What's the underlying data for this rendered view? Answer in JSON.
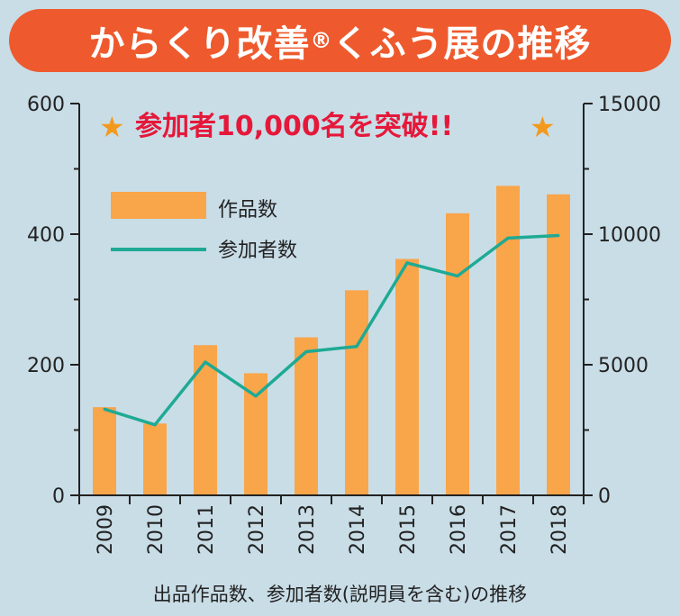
{
  "title": {
    "main": "からくり改善",
    "mark": "®",
    "rest": " くふう展の推移"
  },
  "headline": {
    "star_left": "★",
    "text": "参加者10,000名を突破!!",
    "star_right": "★"
  },
  "caption": "出品作品数、参加者数(説明員を含む)の推移",
  "colors": {
    "bar": "#f9a54a",
    "line": "#1eaa94",
    "banner": "#ee5a2d",
    "headline": "#e5183a",
    "star": "#f39a1e",
    "background": "#c9dde7"
  },
  "chart_data": {
    "type": "bar",
    "categories": [
      "2009",
      "2010",
      "2011",
      "2012",
      "2013",
      "2014",
      "2015",
      "2016",
      "2017",
      "2018"
    ],
    "series": [
      {
        "name": "作品数",
        "type": "bar",
        "axis": "left",
        "values": [
          135,
          110,
          230,
          187,
          242,
          314,
          362,
          432,
          474,
          461
        ]
      },
      {
        "name": "参加者数",
        "type": "line",
        "axis": "right",
        "values": [
          3300,
          2700,
          5100,
          3800,
          5500,
          5700,
          8900,
          8400,
          9850,
          9950
        ]
      }
    ],
    "y_left": {
      "min": 0,
      "max": 600,
      "ticks": [
        0,
        200,
        400,
        600
      ],
      "tick_labels": [
        "0",
        "200",
        "400",
        "600"
      ]
    },
    "y_right": {
      "min": 0,
      "max": 15000,
      "ticks": [
        0,
        5000,
        10000,
        15000
      ],
      "tick_labels": [
        "0",
        "5000",
        "10000",
        "15000"
      ]
    },
    "legend_position": "top-left"
  }
}
